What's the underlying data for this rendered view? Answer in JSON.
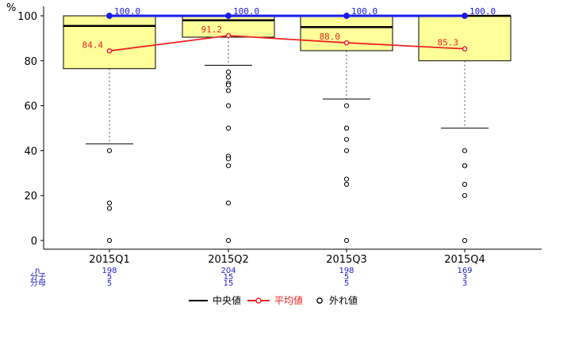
{
  "chart_data": {
    "type": "boxplot",
    "y_unit": "%",
    "categories": [
      "2015Q1",
      "2015Q2",
      "2015Q3",
      "2015Q4"
    ],
    "ylim": [
      0,
      100
    ],
    "yticks": [
      0,
      20,
      40,
      60,
      80,
      100
    ],
    "boxes": [
      {
        "q1": 76.5,
        "median": 95.5,
        "q3": 100,
        "whisker_low": 43,
        "whisker_high": 100,
        "outliers": [
          40,
          16.7,
          14.3,
          0
        ]
      },
      {
        "q1": 90.5,
        "median": 98,
        "q3": 100,
        "whisker_low": 78,
        "whisker_high": 100,
        "outliers": [
          75,
          72.7,
          70,
          69.2,
          66.7,
          60,
          50,
          37.5,
          36.4,
          33.3,
          16.7,
          0
        ]
      },
      {
        "q1": 84.5,
        "median": 95,
        "q3": 100,
        "whisker_low": 63,
        "whisker_high": 100,
        "outliers": [
          60,
          50,
          50,
          45,
          40,
          27.3,
          25,
          0
        ]
      },
      {
        "q1": 80,
        "median": 100,
        "q3": 100,
        "whisker_low": 50,
        "whisker_high": 100,
        "outliers": [
          40,
          33.3,
          33.3,
          25,
          20,
          0
        ]
      }
    ],
    "series": [
      {
        "name": "平均値",
        "values": [
          84.4,
          91.2,
          88.0,
          85.3
        ],
        "labels": [
          "84.4",
          "91.2",
          "88.0",
          "85.3"
        ],
        "color": "#ee2222"
      },
      {
        "name": "",
        "values": [
          100.0,
          100.0,
          100.0,
          100.0
        ],
        "labels": [
          "100.0",
          "100.0",
          "100.0",
          "100.0"
        ],
        "color": "#1a1aee"
      }
    ],
    "stats": {
      "row_labels": [
        "n",
        "分子",
        "分母"
      ],
      "n": [
        "198",
        "204",
        "198",
        "169"
      ],
      "numerator": [
        "5",
        "15",
        "5",
        "3"
      ],
      "denominator": [
        "5",
        "15",
        "5",
        "3"
      ]
    },
    "legend": {
      "median": "中央値",
      "mean": "平均値",
      "outlier": "外れ値",
      "position": "bottom"
    },
    "colors": {
      "box_fill": "#ffff99",
      "mean": "#ee2222",
      "max": "#1a1aee",
      "stats_text": "#2020d0"
    }
  }
}
